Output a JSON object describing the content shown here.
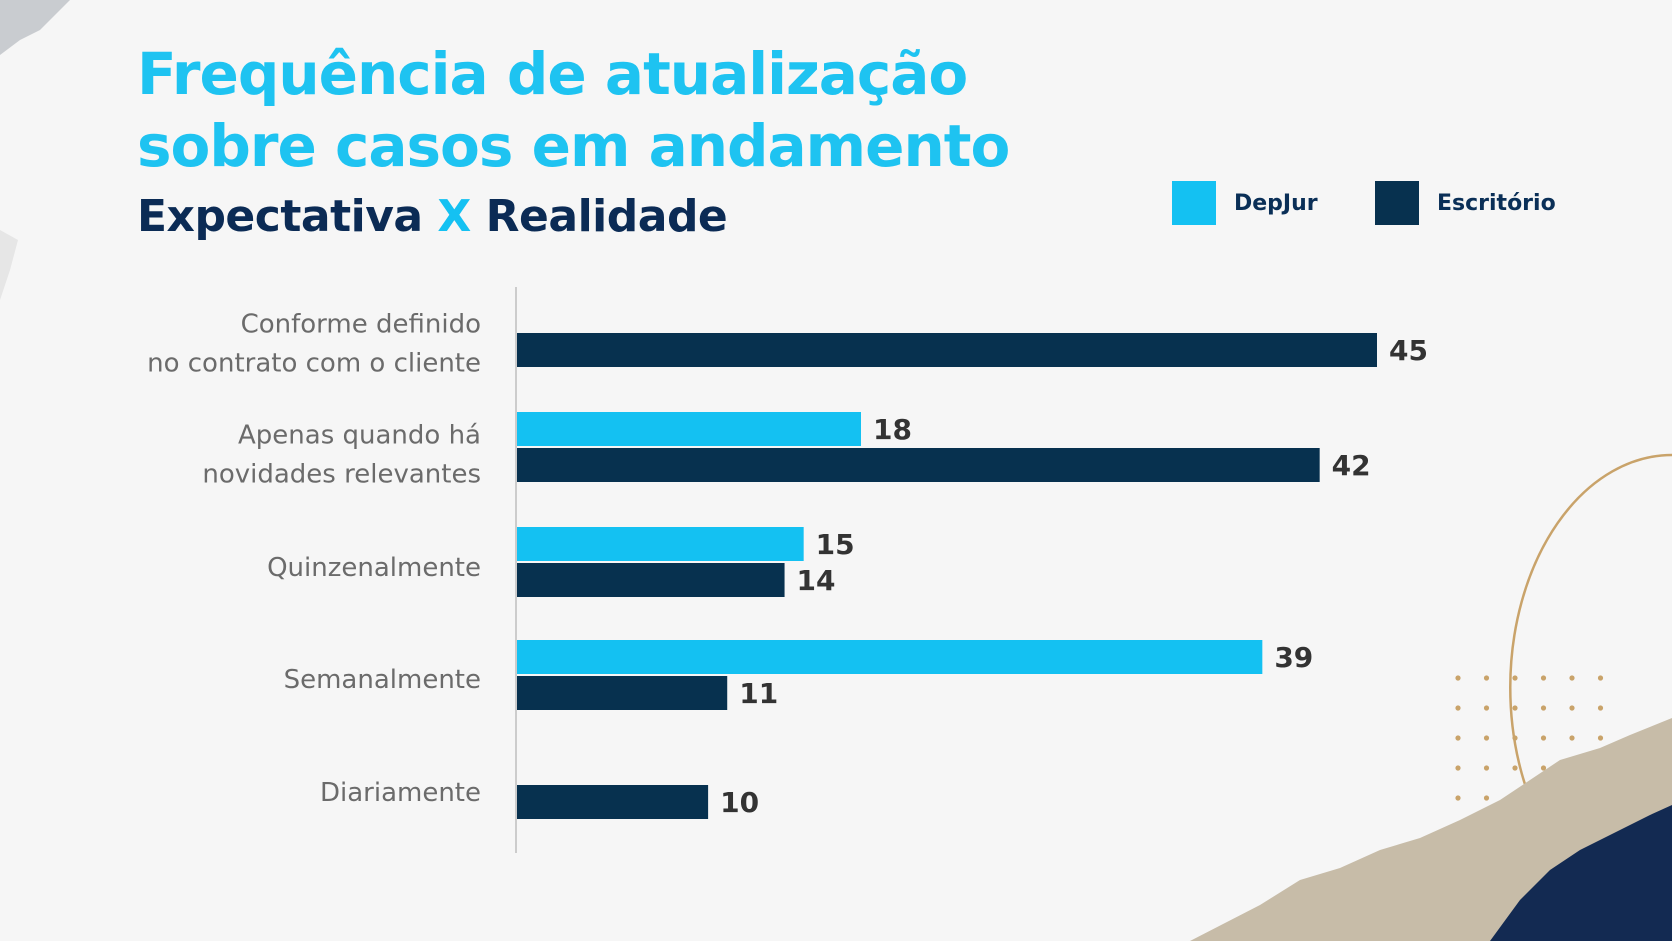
{
  "title": {
    "line1": "Frequência de atualização",
    "line2": "sobre casos em andamento"
  },
  "subtitle": {
    "part1": "Expectativa",
    "part2": "X",
    "part3": "Realidade"
  },
  "colors": {
    "title": "#1ec3f1",
    "subtitle": "#0b2b55",
    "accent": "#14c1f2",
    "dark": "#07314f",
    "gold": "#c9a36a"
  },
  "legend": [
    {
      "name": "DepJur",
      "color": "#14c1f2"
    },
    {
      "name": "Escritório",
      "color": "#07314f"
    }
  ],
  "chart_data": {
    "type": "bar",
    "orientation": "horizontal",
    "categories": [
      [
        "Conforme definido",
        "no contrato com o cliente"
      ],
      [
        "Apenas quando há",
        "novidades relevantes"
      ],
      [
        "Quinzenalmente"
      ],
      [
        "Semanalmente"
      ],
      [
        "Diariamente"
      ]
    ],
    "series": [
      {
        "name": "DepJur",
        "color": "#14c1f2",
        "values": [
          null,
          18,
          15,
          39,
          null
        ]
      },
      {
        "name": "Escritório",
        "color": "#07314f",
        "values": [
          45,
          42,
          14,
          11,
          10
        ]
      }
    ],
    "xlim": [
      0,
      45
    ],
    "grid": false,
    "legend_position": "top-right"
  }
}
